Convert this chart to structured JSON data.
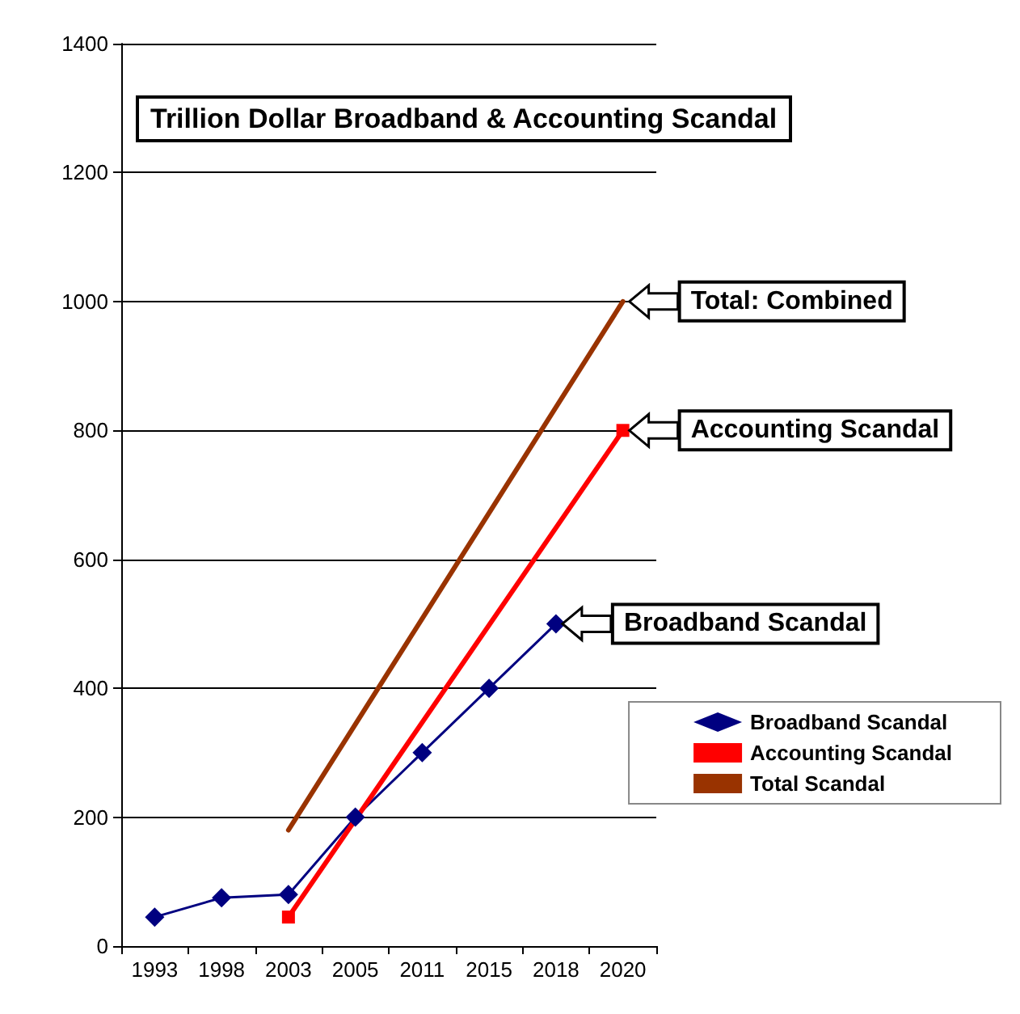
{
  "chart_data": {
    "type": "line",
    "title": "Trillion Dollar Broadband & Accounting Scandal",
    "categories": [
      "1993",
      "1998",
      "2003",
      "2005",
      "2011",
      "2015",
      "2018",
      "2020"
    ],
    "series": [
      {
        "name": "Broadband Scandal",
        "color": "#000080",
        "marker": "diamond",
        "values": [
          45,
          75,
          80,
          200,
          300,
          400,
          500,
          null
        ]
      },
      {
        "name": "Accounting Scandal",
        "color": "#ff0000",
        "marker": "square",
        "values": [
          null,
          null,
          45,
          null,
          null,
          null,
          null,
          800
        ]
      },
      {
        "name": "Total Scandal",
        "color": "#993300",
        "marker": "none",
        "values": [
          null,
          null,
          180,
          null,
          null,
          null,
          null,
          1000
        ]
      }
    ],
    "ylim": [
      0,
      1400
    ],
    "yticks": [
      0,
      200,
      400,
      600,
      800,
      1000,
      1200,
      1400
    ],
    "grid": "y",
    "legend": "bottom right",
    "annotations": [
      {
        "text": "Total: Combined",
        "x": "2020",
        "y": 1000
      },
      {
        "text": "Accounting Scandal",
        "x": "2020",
        "y": 800
      },
      {
        "text": "Broadband Scandal",
        "x": "2018",
        "y": 500
      }
    ]
  }
}
